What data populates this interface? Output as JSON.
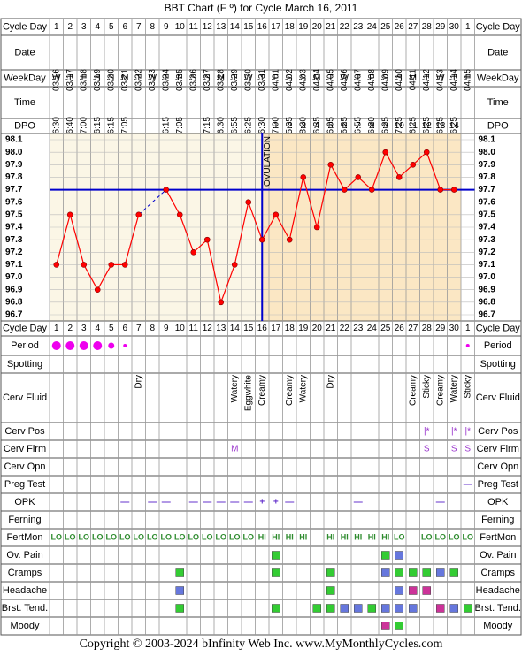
{
  "title": "BBT Chart (F º) for Cycle March 16, 2011",
  "footer": "Copyright © 2003-2024 bInfinity Web Inc.     www.MyMonthlyCycles.com",
  "row_labels": {
    "cycle_day": "Cycle Day",
    "date": "Date",
    "weekday": "WeekDay",
    "time": "Time",
    "dpo": "DPO",
    "period": "Period",
    "spotting": "Spotting",
    "cerv_fluid": "Cerv Fluid",
    "cerv_pos": "Cerv Pos",
    "cerv_firm": "Cerv Firm",
    "cerv_opn": "Cerv Opn",
    "preg_test": "Preg Test",
    "opk": "OPK",
    "ferning": "Ferning",
    "fertmon": "FertMon",
    "ov_pain": "Ov. Pain",
    "cramps": "Cramps",
    "headache": "Headache",
    "brst_tend": "Brst. Tend.",
    "moody": "Moody"
  },
  "colors": {
    "grid": "#999999",
    "pre_ov_bg": "#fbf6e6",
    "post_ov_bg": "#fbe7c4",
    "temp_line": "#ff0000",
    "coverline": "#0000cc",
    "period_dot": "#ee00ee",
    "green": "#33cc33",
    "blue": "#6677dd",
    "magenta": "#cc3399",
    "fertmon": "#2e8b2e",
    "opk": "#6633cc"
  },
  "days": [
    "1",
    "2",
    "3",
    "4",
    "5",
    "6",
    "7",
    "8",
    "9",
    "10",
    "11",
    "12",
    "13",
    "14",
    "15",
    "16",
    "17",
    "18",
    "19",
    "20",
    "21",
    "22",
    "23",
    "24",
    "25",
    "26",
    "27",
    "28",
    "29",
    "30",
    "1"
  ],
  "dates": [
    "03/16",
    "03/17",
    "03/18",
    "03/19",
    "03/20",
    "03/21",
    "03/22",
    "03/23",
    "03/24",
    "03/25",
    "03/26",
    "03/27",
    "03/28",
    "03/29",
    "03/30",
    "03/31",
    "04/01",
    "04/02",
    "04/03",
    "04/04",
    "04/05",
    "04/06",
    "04/07",
    "04/08",
    "04/09",
    "04/10",
    "04/11",
    "04/12",
    "04/13",
    "04/14",
    "04/15"
  ],
  "weekdays": [
    "W",
    "T",
    "F",
    "S",
    "S",
    "M",
    "T",
    "W",
    "T",
    "F",
    "S",
    "S",
    "M",
    "T",
    "W",
    "T",
    "F",
    "S",
    "S",
    "M",
    "T",
    "W",
    "T",
    "F",
    "S",
    "S",
    "M",
    "T",
    "W",
    "T",
    "F"
  ],
  "times": [
    "6:30",
    "6:40",
    "7:00",
    "6:15",
    "6:15",
    "7:05",
    "",
    "",
    "6:15",
    "7:05",
    "",
    "7:15",
    "6:30",
    "6:55",
    "6:25",
    "6:30",
    "7:00",
    "5:35",
    "8:30",
    "6:35",
    "6:05",
    "6:25",
    "6:55",
    "6:20",
    "6:25",
    "7:25",
    "6:25",
    "6:25",
    "6:25",
    "6:25",
    ""
  ],
  "dpo": [
    "",
    "",
    "",
    "",
    "",
    "",
    "",
    "",
    "",
    "",
    "",
    "",
    "",
    "",
    "",
    "",
    "1",
    "2",
    "3",
    "4",
    "5",
    "6",
    "7",
    "8",
    "9",
    "10",
    "11",
    "12",
    "13",
    "14",
    ""
  ],
  "chart_data": {
    "type": "line",
    "x_label": "Cycle Day",
    "y_ticks": [
      "98.1",
      "98.0",
      "97.9",
      "97.8",
      "97.7",
      "97.6",
      "97.5",
      "97.4",
      "97.3",
      "97.2",
      "97.1",
      "97.0",
      "96.9",
      "96.8",
      "96.7"
    ],
    "ylim": [
      96.7,
      98.1
    ],
    "coverline": 97.7,
    "ovulation_day": 16,
    "ovulation_label": "OVULATION",
    "temps": [
      97.1,
      97.5,
      97.1,
      96.9,
      97.1,
      97.1,
      97.5,
      null,
      97.7,
      97.5,
      97.2,
      97.3,
      96.8,
      97.1,
      97.6,
      97.3,
      97.5,
      97.3,
      97.8,
      97.4,
      97.9,
      97.7,
      97.8,
      97.7,
      98.0,
      97.8,
      97.9,
      98.0,
      97.7,
      97.7,
      null
    ],
    "dashed_segment": [
      6,
      8
    ]
  },
  "period": [
    "L",
    "L",
    "L",
    "L",
    "M",
    "S",
    "",
    "",
    "",
    "",
    "",
    "",
    "",
    "",
    "",
    "",
    "",
    "",
    "",
    "",
    "",
    "",
    "",
    "",
    "",
    "",
    "",
    "",
    "",
    "",
    "S"
  ],
  "cerv_fluid": [
    "",
    "",
    "",
    "",
    "",
    "",
    "Dry",
    "",
    "",
    "",
    "",
    "",
    "",
    "Watery",
    "Eggwhite",
    "Creamy",
    "",
    "Creamy",
    "Watery",
    "",
    "Dry",
    "",
    "",
    "",
    "",
    "",
    "Creamy",
    "Sticky",
    "Creamy",
    "Watery",
    "Sticky"
  ],
  "cerv_pos": [
    "",
    "",
    "",
    "",
    "",
    "",
    "",
    "",
    "",
    "",
    "",
    "",
    "",
    "",
    "",
    "",
    "",
    "",
    "",
    "",
    "",
    "",
    "",
    "",
    "",
    "",
    "",
    "|*",
    "",
    "|*",
    "|*"
  ],
  "cerv_firm": [
    "",
    "",
    "",
    "",
    "",
    "",
    "",
    "",
    "",
    "",
    "",
    "",
    "",
    "M",
    "",
    "",
    "",
    "",
    "",
    "",
    "",
    "",
    "",
    "",
    "",
    "",
    "",
    "S",
    "",
    "S",
    "S"
  ],
  "preg_test": [
    "",
    "",
    "",
    "",
    "",
    "",
    "",
    "",
    "",
    "",
    "",
    "",
    "",
    "",
    "",
    "",
    "",
    "",
    "",
    "",
    "",
    "",
    "",
    "",
    "",
    "",
    "",
    "",
    "",
    "",
    "—"
  ],
  "opk": [
    "",
    "",
    "",
    "",
    "",
    "—",
    "",
    "—",
    "—",
    "",
    "—",
    "—",
    "—",
    "—",
    "—",
    "+",
    "+",
    "—",
    "",
    "",
    "",
    "",
    "—",
    "",
    "",
    "",
    "",
    "",
    "—",
    "",
    ""
  ],
  "fertmon": [
    "LO",
    "LO",
    "LO",
    "LO",
    "LO",
    "LO",
    "LO",
    "LO",
    "LO",
    "LO",
    "LO",
    "LO",
    "LO",
    "LO",
    "LO",
    "HI",
    "HI",
    "HI",
    "HI",
    "",
    "HI",
    "HI",
    "HI",
    "HI",
    "HI",
    "LO",
    "",
    "LO",
    "LO",
    "LO",
    "LO"
  ],
  "ov_pain": [
    0,
    0,
    0,
    0,
    0,
    0,
    0,
    0,
    0,
    0,
    0,
    0,
    0,
    0,
    0,
    0,
    1,
    0,
    0,
    0,
    0,
    0,
    0,
    0,
    1,
    2,
    0,
    0,
    0,
    0,
    0
  ],
  "cramps": [
    0,
    0,
    0,
    0,
    0,
    0,
    0,
    0,
    0,
    1,
    0,
    0,
    0,
    0,
    0,
    0,
    1,
    0,
    0,
    0,
    1,
    0,
    0,
    0,
    2,
    1,
    1,
    1,
    2,
    1,
    0
  ],
  "headache": [
    0,
    0,
    0,
    0,
    0,
    0,
    0,
    0,
    0,
    2,
    0,
    0,
    0,
    0,
    0,
    0,
    0,
    0,
    0,
    0,
    1,
    0,
    0,
    0,
    0,
    2,
    3,
    3,
    0,
    0,
    0
  ],
  "brst_tend": [
    0,
    0,
    0,
    0,
    0,
    0,
    0,
    0,
    0,
    1,
    0,
    0,
    0,
    0,
    0,
    0,
    1,
    0,
    0,
    1,
    1,
    2,
    2,
    1,
    2,
    2,
    2,
    0,
    3,
    2,
    1
  ],
  "moody": [
    0,
    0,
    0,
    0,
    0,
    0,
    0,
    0,
    0,
    0,
    0,
    0,
    0,
    0,
    0,
    0,
    0,
    0,
    0,
    0,
    0,
    0,
    0,
    0,
    3,
    1,
    0,
    0,
    0,
    0,
    0
  ]
}
